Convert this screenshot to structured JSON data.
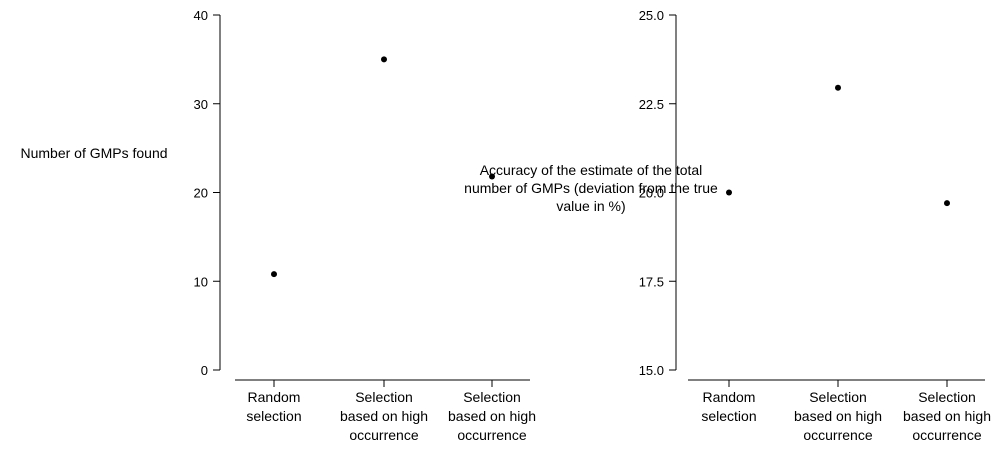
{
  "chart_data": [
    {
      "type": "scatter",
      "title": "",
      "xlabel": "",
      "ylabel": "Number of GMPs found",
      "categories": [
        "Random selection",
        "Selection based on high occurrence",
        "Selection based on high occurrence"
      ],
      "values": [
        10.8,
        35.0,
        21.8
      ],
      "ylim": [
        0,
        40
      ],
      "yticks": [
        "0",
        "10",
        "20",
        "30",
        "40"
      ],
      "grid": false,
      "legend": "none"
    },
    {
      "type": "scatter",
      "title": "",
      "xlabel": "",
      "ylabel": "Accuracy of the estimate of the total number of GMPs (deviation from the true value in %)",
      "categories": [
        "Random selection",
        "Selection based on high occurrence",
        "Selection based on high occurrence"
      ],
      "values": [
        20.0,
        22.95,
        19.7
      ],
      "ylim": [
        15,
        25
      ],
      "yticks": [
        "15.0",
        "17.5",
        "20.0",
        "22.5",
        "25.0"
      ],
      "grid": false,
      "legend": "none"
    }
  ]
}
